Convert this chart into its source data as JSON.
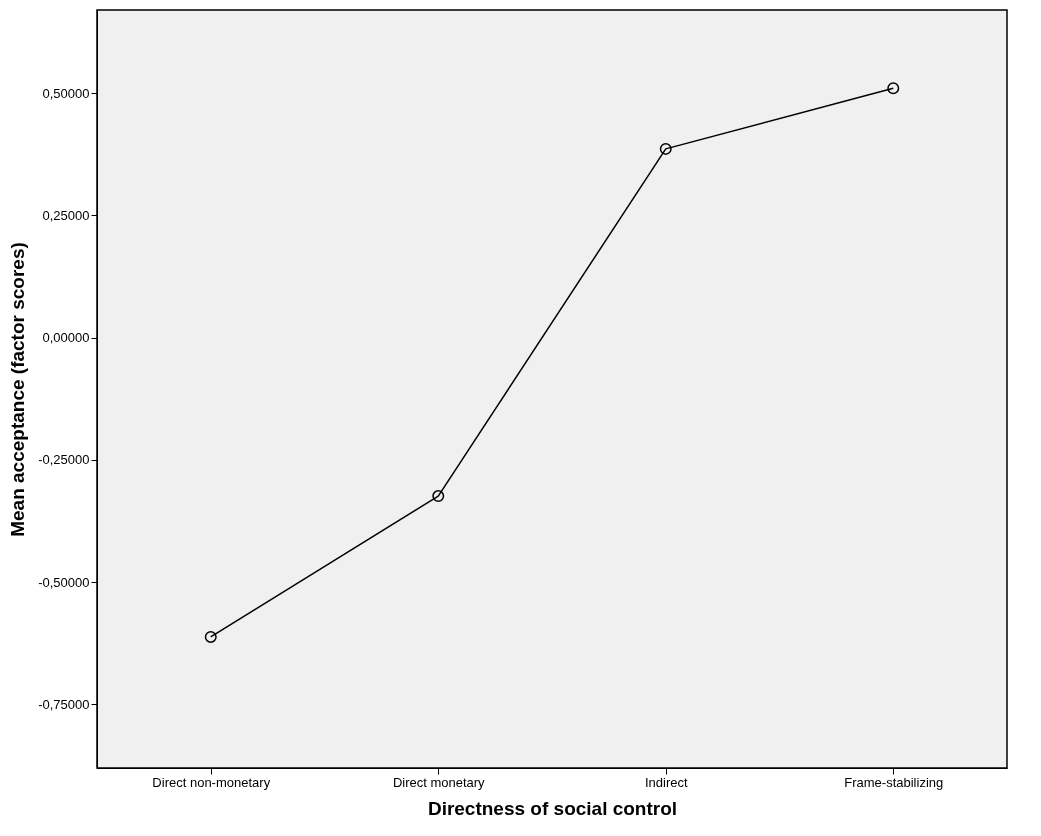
{
  "chart_data": {
    "type": "line",
    "xlabel": "Directness of social control",
    "ylabel": "Mean acceptance (factor scores)",
    "categories": [
      "Direct non-monetary",
      "Direct monetary",
      "Indirect",
      "Frame-stabilizing"
    ],
    "series": [
      {
        "color": "#000000",
        "values": [
          -0.612,
          -0.324,
          0.386,
          0.51
        ]
      }
    ],
    "ylim": [
      -0.88,
      0.67
    ],
    "yticks": [
      {
        "value": -0.75,
        "label": "-0,75000"
      },
      {
        "value": -0.5,
        "label": "-0,50000"
      },
      {
        "value": -0.25,
        "label": "-0,25000"
      },
      {
        "value": 0,
        "label": "0,00000"
      },
      {
        "value": 0.25,
        "label": "0,25000"
      },
      {
        "value": 0.5,
        "label": "0,50000"
      }
    ],
    "marker": "circle",
    "line_style": "solid",
    "grid": false
  }
}
